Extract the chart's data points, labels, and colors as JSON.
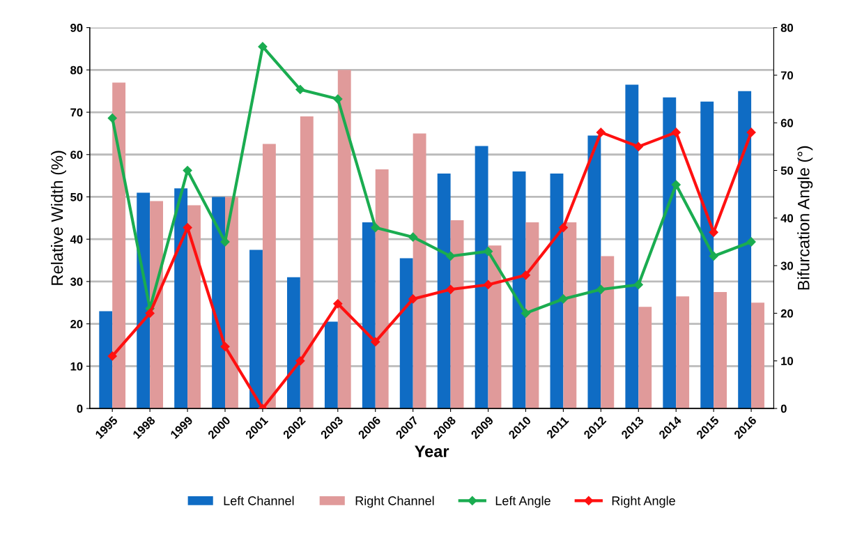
{
  "chart_data": {
    "type": "bar",
    "xlabel": "Year",
    "ylabel": "Relative Width (%)",
    "y2label": "Bifurcation Angle (°)",
    "categories": [
      "1995",
      "1998",
      "1999",
      "2000",
      "2001",
      "2002",
      "2003",
      "2006",
      "2007",
      "2008",
      "2009",
      "2010",
      "2011",
      "2012",
      "2013",
      "2014",
      "2015",
      "2016"
    ],
    "series": [
      {
        "name": "Left Channel",
        "color": "#0f6cc4",
        "values": [
          23,
          51,
          52,
          50,
          37.5,
          31,
          20.5,
          44,
          35.5,
          55.5,
          62,
          56,
          55.5,
          64.5,
          76.5,
          73.5,
          72.5,
          75
        ]
      },
      {
        "name": "Right Channel",
        "color": "#e09a9a",
        "values": [
          77,
          49,
          48,
          50,
          62.5,
          69,
          80,
          56.5,
          65,
          44.5,
          38.5,
          44,
          44,
          36,
          24,
          26.5,
          27.5,
          25
        ]
      },
      {
        "name": "Left Angle",
        "type": "line",
        "axis": "y2",
        "color": "#1aac50",
        "values": [
          61,
          21,
          50,
          35,
          76,
          67,
          65,
          38,
          36,
          32,
          33,
          20,
          23,
          25,
          26,
          47,
          32,
          35
        ]
      },
      {
        "name": "Right Angle",
        "type": "line",
        "axis": "y2",
        "color": "#ff1010",
        "values": [
          11,
          20,
          38,
          13,
          0,
          10,
          22,
          14,
          23,
          25,
          26,
          28,
          38,
          58,
          55,
          58,
          37,
          58
        ]
      }
    ],
    "ylim": [
      0,
      90
    ],
    "yticks": [
      0,
      10,
      20,
      30,
      40,
      50,
      60,
      70,
      80,
      90
    ],
    "y2lim": [
      0,
      80
    ],
    "y2ticks": [
      0,
      10,
      20,
      30,
      40,
      50,
      60,
      70,
      80
    ],
    "grid": "y",
    "legend": "bottom",
    "marker": "diamond",
    "line_style": "solid"
  }
}
